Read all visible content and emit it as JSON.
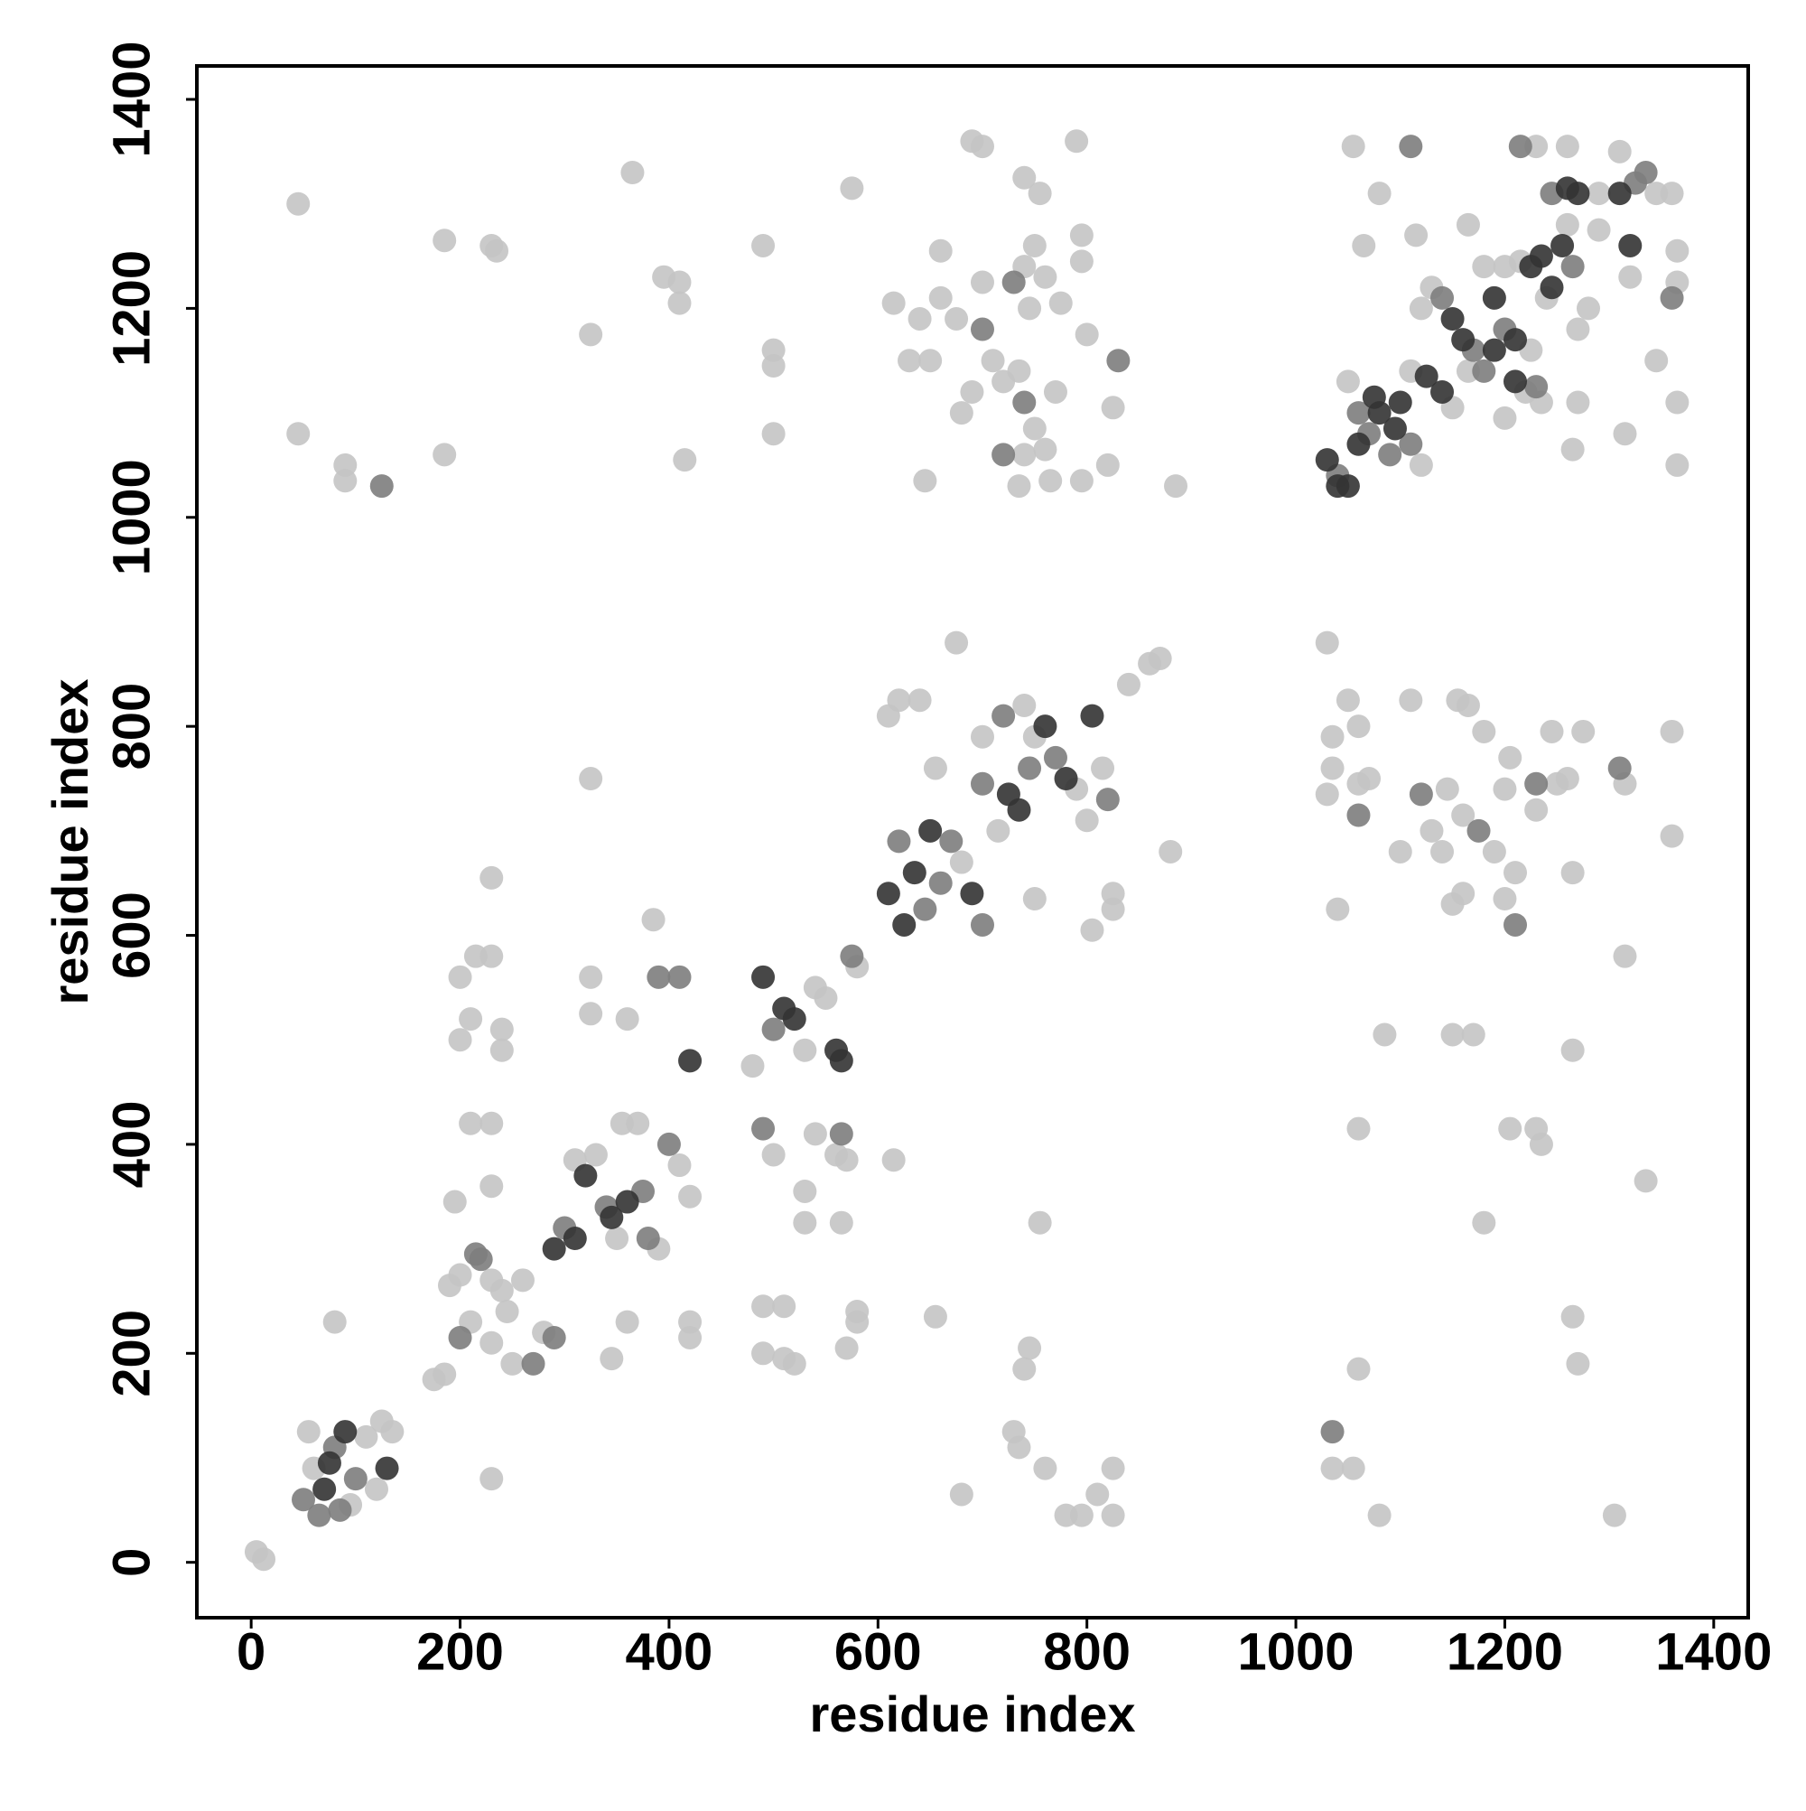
{
  "chart_data": {
    "type": "scatter",
    "xlabel": "residue index",
    "ylabel": "residue index",
    "xlim": [
      -52,
      1433
    ],
    "ylim": [
      -53,
      1432
    ],
    "xticks": [
      0,
      200,
      400,
      600,
      800,
      1000,
      1200,
      1400
    ],
    "yticks": [
      0,
      200,
      400,
      600,
      800,
      1000,
      1200,
      1400
    ],
    "grid": false,
    "series": [
      {
        "color": "#c4c4c4",
        "x": [
          5,
          12,
          60,
          110,
          120,
          125,
          135,
          95,
          55,
          80,
          230,
          175,
          185,
          190,
          210,
          230,
          240,
          250,
          260,
          280,
          200,
          245,
          230,
          330,
          350,
          370,
          390,
          410,
          420,
          310,
          355,
          195,
          345,
          230,
          360,
          200,
          210,
          215,
          230,
          240,
          200,
          240,
          490,
          510,
          520,
          490,
          510,
          580,
          570,
          385,
          325,
          325,
          360,
          325,
          230,
          230,
          210,
          420,
          420,
          480,
          530,
          540,
          550,
          580,
          500,
          540,
          560,
          570,
          530,
          530,
          565,
          615,
          680,
          715,
          750,
          790,
          800,
          815,
          740,
          840,
          860,
          870,
          675,
          620,
          640,
          655,
          750,
          805,
          825,
          880,
          825,
          610,
          700,
          645,
          660,
          690,
          700,
          790,
          740,
          755,
          795,
          795,
          750,
          740,
          700,
          615,
          640,
          660,
          630,
          675,
          710,
          720,
          690,
          680,
          750,
          760,
          740,
          735,
          765,
          795,
          820,
          825,
          800,
          775,
          745,
          760,
          885,
          735,
          770,
          650,
          500,
          500,
          500,
          490,
          575,
          365,
          325,
          395,
          410,
          410,
          415,
          45,
          45,
          185,
          230,
          235,
          185,
          90,
          90,
          1030,
          1050,
          1060,
          1035,
          1035,
          1030,
          1060,
          1070,
          1040,
          1110,
          1155,
          1165,
          1145,
          1160,
          1100,
          1130,
          1140,
          1150,
          1160,
          1190,
          1200,
          1210,
          1200,
          1230,
          1250,
          1260,
          1245,
          1275,
          1205,
          1180,
          1265,
          1315,
          1360,
          1360,
          1315,
          1085,
          1150,
          1170,
          1060,
          1180,
          1205,
          1230,
          1235,
          1265,
          1335,
          755,
          1265,
          1270,
          1060,
          1035,
          1055,
          1080,
          1305,
          745,
          740,
          730,
          735,
          760,
          680,
          795,
          810,
          825,
          825,
          655,
          580,
          780,
          1120,
          1050,
          1110,
          1290,
          1310,
          1290,
          1280,
          1270,
          1240,
          1225,
          1235,
          1220,
          1200,
          1165,
          1120,
          1130,
          1115,
          1080,
          1065,
          1055,
          1230,
          1260,
          1265,
          1270,
          1315,
          1365,
          1365,
          1365,
          1365,
          1360,
          1345,
          1345,
          1260,
          1215,
          1200,
          1180,
          1165,
          1150,
          1320
        ],
        "values": [
          10,
          3,
          90,
          120,
          70,
          135,
          125,
          55,
          125,
          230,
          80,
          175,
          180,
          265,
          230,
          210,
          260,
          190,
          270,
          220,
          275,
          240,
          270,
          390,
          310,
          420,
          300,
          380,
          350,
          385,
          420,
          345,
          195,
          360,
          230,
          500,
          520,
          580,
          580,
          510,
          560,
          490,
          200,
          195,
          190,
          245,
          245,
          240,
          205,
          615,
          560,
          525,
          520,
          750,
          655,
          420,
          420,
          230,
          215,
          475,
          490,
          550,
          540,
          570,
          390,
          410,
          390,
          385,
          355,
          325,
          325,
          385,
          670,
          700,
          790,
          740,
          710,
          760,
          820,
          840,
          860,
          865,
          880,
          825,
          825,
          760,
          635,
          605,
          625,
          680,
          640,
          810,
          790,
          1035,
          1255,
          1360,
          1355,
          1360,
          1325,
          1310,
          1270,
          1245,
          1260,
          1240,
          1225,
          1205,
          1190,
          1210,
          1150,
          1190,
          1150,
          1130,
          1120,
          1100,
          1085,
          1065,
          1060,
          1030,
          1035,
          1035,
          1050,
          1105,
          1175,
          1205,
          1200,
          1230,
          1030,
          1140,
          1120,
          1150,
          1160,
          1145,
          1080,
          1260,
          1315,
          1330,
          1175,
          1230,
          1225,
          1205,
          1055,
          1300,
          1080,
          1265,
          1260,
          1255,
          1060,
          1050,
          1035,
          880,
          825,
          800,
          790,
          760,
          735,
          745,
          750,
          625,
          825,
          825,
          820,
          740,
          715,
          680,
          700,
          680,
          630,
          640,
          680,
          635,
          660,
          740,
          720,
          745,
          750,
          795,
          795,
          770,
          795,
          660,
          745,
          795,
          695,
          580,
          505,
          505,
          505,
          415,
          325,
          415,
          415,
          400,
          490,
          365,
          325,
          235,
          190,
          185,
          90,
          90,
          45,
          45,
          205,
          185,
          125,
          110,
          90,
          65,
          45,
          65,
          45,
          90,
          235,
          230,
          45,
          1050,
          1130,
          1140,
          1310,
          1350,
          1275,
          1200,
          1180,
          1210,
          1160,
          1110,
          1120,
          1095,
          1280,
          1200,
          1220,
          1270,
          1310,
          1260,
          1355,
          1355,
          1355,
          1065,
          1110,
          1080,
          1110,
          1050,
          1225,
          1255,
          1310,
          1310,
          1150,
          1280,
          1245,
          1240,
          1240,
          1140,
          1105,
          1230
        ]
      },
      {
        "color": "#7d7d7d",
        "x": [
          50,
          80,
          100,
          85,
          65,
          200,
          220,
          270,
          290,
          215,
          300,
          340,
          380,
          400,
          375,
          390,
          410,
          500,
          575,
          490,
          565,
          620,
          645,
          660,
          670,
          700,
          700,
          745,
          770,
          820,
          720,
          730,
          700,
          740,
          720,
          830,
          125,
          1060,
          1120,
          1175,
          1210,
          1230,
          1310,
          1035,
          1040,
          1070,
          1090,
          1110,
          1060,
          1170,
          1180,
          1200,
          1265,
          1245,
          1325,
          1335,
          1140,
          1110,
          1215,
          1360,
          1230
        ],
        "values": [
          60,
          110,
          80,
          50,
          45,
          215,
          290,
          190,
          215,
          295,
          320,
          340,
          310,
          400,
          355,
          560,
          560,
          510,
          580,
          415,
          410,
          690,
          625,
          650,
          690,
          610,
          745,
          760,
          770,
          730,
          810,
          1225,
          1180,
          1110,
          1060,
          1150,
          1030,
          715,
          735,
          700,
          610,
          745,
          760,
          125,
          1040,
          1080,
          1060,
          1070,
          1100,
          1160,
          1140,
          1180,
          1240,
          1310,
          1320,
          1330,
          1210,
          1355,
          1355,
          1210,
          1125
        ]
      },
      {
        "color": "#333333",
        "x": [
          70,
          90,
          130,
          75,
          290,
          310,
          320,
          360,
          345,
          420,
          490,
          510,
          520,
          560,
          565,
          610,
          625,
          635,
          650,
          690,
          725,
          735,
          760,
          780,
          805,
          1030,
          1050,
          1060,
          1080,
          1100,
          1075,
          1095,
          1125,
          1140,
          1150,
          1160,
          1190,
          1210,
          1210,
          1225,
          1235,
          1245,
          1255,
          1270,
          1260,
          1310,
          1320,
          1190,
          1040
        ],
        "values": [
          70,
          125,
          90,
          95,
          300,
          310,
          370,
          345,
          330,
          480,
          560,
          530,
          520,
          490,
          480,
          640,
          610,
          660,
          700,
          640,
          735,
          720,
          800,
          750,
          810,
          1055,
          1030,
          1070,
          1100,
          1110,
          1115,
          1085,
          1135,
          1120,
          1190,
          1170,
          1210,
          1170,
          1130,
          1240,
          1250,
          1220,
          1260,
          1310,
          1315,
          1310,
          1260,
          1160,
          1030
        ]
      }
    ]
  }
}
